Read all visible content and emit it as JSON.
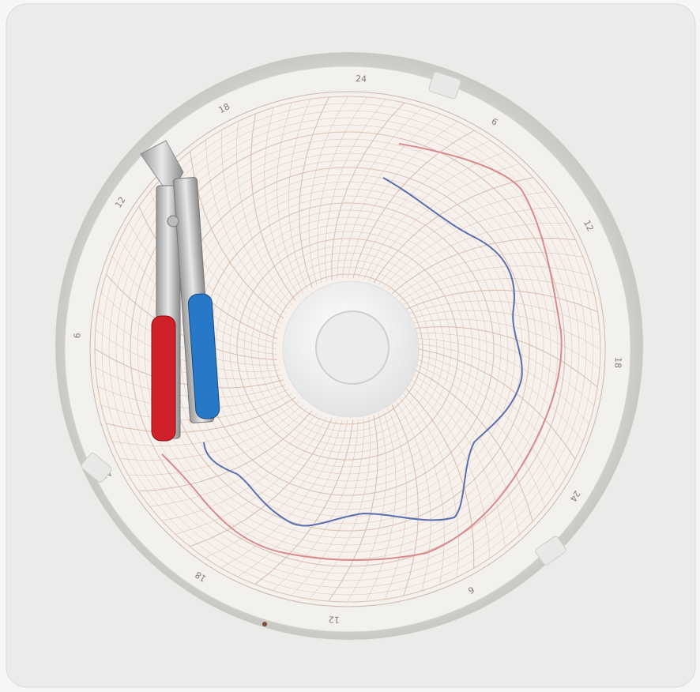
{
  "ring_labels": [
    "24",
    "6",
    "12",
    "18",
    "24",
    "6",
    "12",
    "18",
    "24",
    "6",
    "12",
    "18"
  ]
}
